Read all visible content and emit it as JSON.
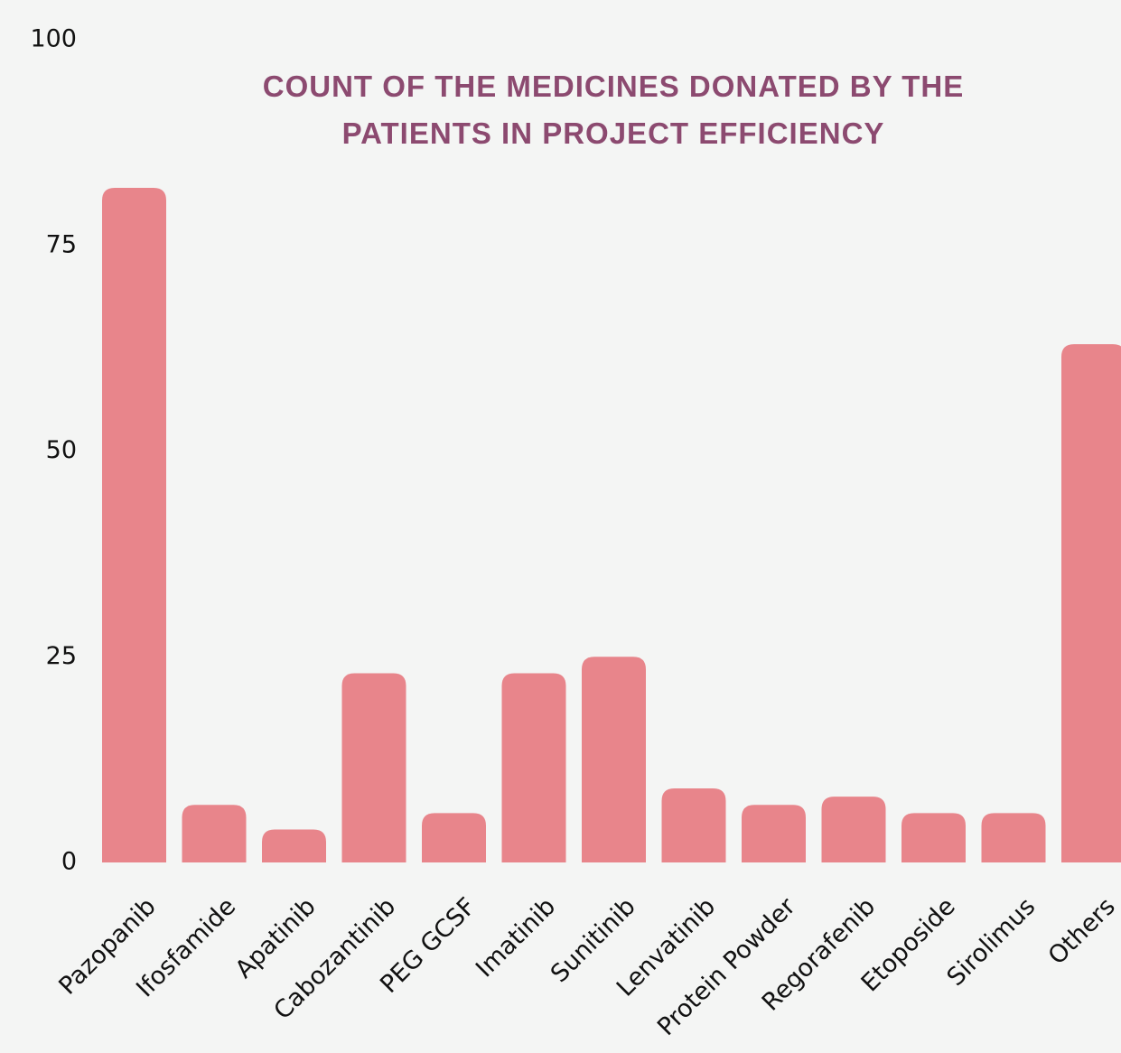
{
  "chart_data": {
    "type": "bar",
    "title": "COUNT OF THE MEDICINES DONATED BY THE PATIENTS IN PROJECT EFFICIENCY",
    "categories": [
      "Pazopanib",
      "Ifosfamide",
      "Apatinib",
      "Cabozantinib",
      "PEG GCSF",
      "Imatinib",
      "Sunitinib",
      "Lenvatinib",
      "Protein Powder",
      "Regorafenib",
      "Etoposide",
      "Sirolimus",
      "Others"
    ],
    "values": [
      82,
      7,
      4,
      23,
      6,
      23,
      25,
      9,
      7,
      8,
      6,
      6,
      63
    ],
    "color": "#e8858b",
    "ylim": [
      0,
      100
    ],
    "yticks": [
      0,
      25,
      50,
      75,
      100
    ],
    "grid": false
  }
}
